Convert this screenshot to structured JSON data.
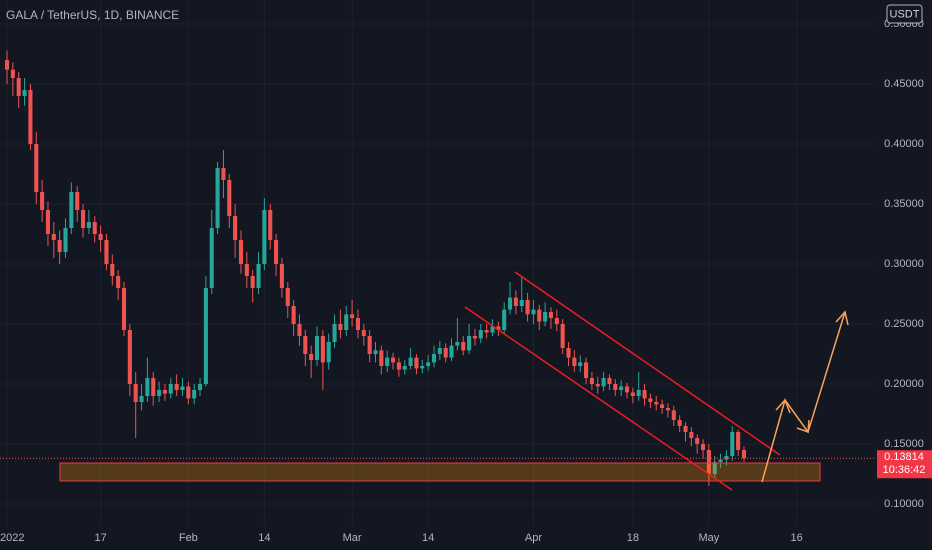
{
  "chart_data": {
    "type": "candlestick",
    "title": "GALA / TetherUS, 1D, BINANCE",
    "currency": "USDT",
    "last_price": 0.13814,
    "countdown": "10:36:42",
    "up_color": "#26a69a",
    "down_color": "#ef5350",
    "grid": true,
    "xlim": [
      -1.2,
      148.4
    ],
    "xticks": [
      {
        "value": 0,
        "label": "2022"
      },
      {
        "value": 16,
        "label": "17"
      },
      {
        "value": 31,
        "label": "Feb"
      },
      {
        "value": 44,
        "label": "14"
      },
      {
        "value": 59,
        "label": "Mar"
      },
      {
        "value": 72,
        "label": "14"
      },
      {
        "value": 90,
        "label": "Apr"
      },
      {
        "value": 107,
        "label": "18"
      },
      {
        "value": 120,
        "label": "May"
      },
      {
        "value": 135,
        "label": "16"
      }
    ],
    "ylim": [
      0.0825,
      0.52
    ],
    "yticks": [
      {
        "value": 0.1,
        "label": "0.10000"
      },
      {
        "value": 0.15,
        "label": "0.15000"
      },
      {
        "value": 0.2,
        "label": "0.20000"
      },
      {
        "value": 0.25,
        "label": "0.25000"
      },
      {
        "value": 0.3,
        "label": "0.30000"
      },
      {
        "value": 0.35,
        "label": "0.35000"
      },
      {
        "value": 0.4,
        "label": "0.40000"
      },
      {
        "value": 0.45,
        "label": "0.45000"
      },
      {
        "value": 0.5,
        "label": "0.50000"
      }
    ],
    "x": [
      0,
      1,
      2,
      3,
      4,
      5,
      6,
      7,
      8,
      9,
      10,
      11,
      12,
      13,
      14,
      15,
      16,
      17,
      18,
      19,
      20,
      21,
      22,
      23,
      24,
      25,
      26,
      27,
      28,
      29,
      30,
      31,
      32,
      33,
      34,
      35,
      36,
      37,
      38,
      39,
      40,
      41,
      42,
      43,
      44,
      45,
      46,
      47,
      48,
      49,
      50,
      51,
      52,
      53,
      54,
      55,
      56,
      57,
      58,
      59,
      60,
      61,
      62,
      63,
      64,
      65,
      66,
      67,
      68,
      69,
      70,
      71,
      72,
      73,
      74,
      75,
      76,
      77,
      78,
      79,
      80,
      81,
      82,
      83,
      84,
      85,
      86,
      87,
      88,
      89,
      90,
      91,
      92,
      93,
      94,
      95,
      96,
      97,
      98,
      99,
      100,
      101,
      102,
      103,
      104,
      105,
      106,
      107,
      108,
      109,
      110,
      111,
      112,
      113,
      114,
      115,
      116,
      117,
      118,
      119,
      120,
      121,
      122,
      123,
      124,
      125,
      126
    ],
    "open": [
      0.47,
      0.462,
      0.455,
      0.44,
      0.445,
      0.4,
      0.36,
      0.345,
      0.325,
      0.32,
      0.31,
      0.33,
      0.36,
      0.345,
      0.33,
      0.335,
      0.325,
      0.32,
      0.3,
      0.29,
      0.28,
      0.245,
      0.2,
      0.185,
      0.19,
      0.205,
      0.19,
      0.195,
      0.192,
      0.2,
      0.195,
      0.198,
      0.188,
      0.195,
      0.2,
      0.28,
      0.33,
      0.38,
      0.37,
      0.34,
      0.32,
      0.3,
      0.29,
      0.28,
      0.3,
      0.345,
      0.32,
      0.3,
      0.28,
      0.265,
      0.25,
      0.24,
      0.225,
      0.22,
      0.24,
      0.218,
      0.235,
      0.25,
      0.245,
      0.258,
      0.255,
      0.245,
      0.24,
      0.225,
      0.228,
      0.215,
      0.222,
      0.218,
      0.212,
      0.215,
      0.222,
      0.213,
      0.215,
      0.218,
      0.225,
      0.23,
      0.222,
      0.232,
      0.235,
      0.228,
      0.24,
      0.238,
      0.245,
      0.243,
      0.248,
      0.245,
      0.262,
      0.272,
      0.265,
      0.27,
      0.258,
      0.262,
      0.252,
      0.26,
      0.255,
      0.25,
      0.23,
      0.222,
      0.215,
      0.218,
      0.205,
      0.2,
      0.198,
      0.205,
      0.2,
      0.195,
      0.198,
      0.193,
      0.19,
      0.195,
      0.188,
      0.185,
      0.183,
      0.18,
      0.178,
      0.17,
      0.165,
      0.16,
      0.155,
      0.15,
      0.145,
      0.125,
      0.135,
      0.137,
      0.14,
      0.16,
      0.145
    ],
    "high": [
      0.478,
      0.468,
      0.46,
      0.455,
      0.45,
      0.41,
      0.37,
      0.352,
      0.335,
      0.328,
      0.338,
      0.368,
      0.365,
      0.35,
      0.345,
      0.34,
      0.332,
      0.325,
      0.308,
      0.295,
      0.285,
      0.25,
      0.21,
      0.2,
      0.222,
      0.21,
      0.202,
      0.2,
      0.205,
      0.208,
      0.205,
      0.202,
      0.2,
      0.205,
      0.29,
      0.345,
      0.385,
      0.395,
      0.375,
      0.35,
      0.328,
      0.31,
      0.295,
      0.31,
      0.355,
      0.35,
      0.325,
      0.305,
      0.285,
      0.27,
      0.258,
      0.245,
      0.232,
      0.248,
      0.245,
      0.242,
      0.258,
      0.262,
      0.265,
      0.27,
      0.262,
      0.25,
      0.245,
      0.235,
      0.232,
      0.228,
      0.226,
      0.222,
      0.22,
      0.23,
      0.225,
      0.22,
      0.224,
      0.232,
      0.236,
      0.234,
      0.238,
      0.255,
      0.24,
      0.25,
      0.246,
      0.25,
      0.25,
      0.254,
      0.252,
      0.268,
      0.285,
      0.278,
      0.29,
      0.276,
      0.27,
      0.266,
      0.268,
      0.264,
      0.262,
      0.254,
      0.235,
      0.228,
      0.224,
      0.222,
      0.21,
      0.206,
      0.21,
      0.208,
      0.204,
      0.203,
      0.201,
      0.197,
      0.21,
      0.2,
      0.192,
      0.19,
      0.187,
      0.184,
      0.182,
      0.174,
      0.168,
      0.164,
      0.158,
      0.154,
      0.15,
      0.14,
      0.142,
      0.145,
      0.165,
      0.162,
      0.148
    ],
    "low": [
      0.45,
      0.44,
      0.43,
      0.432,
      0.395,
      0.35,
      0.335,
      0.315,
      0.305,
      0.3,
      0.305,
      0.325,
      0.335,
      0.322,
      0.325,
      0.318,
      0.31,
      0.295,
      0.282,
      0.27,
      0.24,
      0.19,
      0.155,
      0.178,
      0.185,
      0.182,
      0.185,
      0.186,
      0.188,
      0.19,
      0.19,
      0.183,
      0.183,
      0.19,
      0.198,
      0.275,
      0.325,
      0.355,
      0.33,
      0.305,
      0.292,
      0.28,
      0.268,
      0.275,
      0.295,
      0.312,
      0.29,
      0.272,
      0.255,
      0.24,
      0.232,
      0.215,
      0.205,
      0.215,
      0.195,
      0.212,
      0.23,
      0.238,
      0.24,
      0.248,
      0.238,
      0.232,
      0.218,
      0.218,
      0.208,
      0.21,
      0.212,
      0.206,
      0.208,
      0.212,
      0.208,
      0.209,
      0.211,
      0.214,
      0.22,
      0.218,
      0.219,
      0.228,
      0.224,
      0.225,
      0.232,
      0.234,
      0.238,
      0.24,
      0.24,
      0.242,
      0.258,
      0.258,
      0.26,
      0.252,
      0.25,
      0.245,
      0.248,
      0.246,
      0.244,
      0.225,
      0.215,
      0.21,
      0.21,
      0.2,
      0.195,
      0.192,
      0.194,
      0.195,
      0.19,
      0.19,
      0.188,
      0.184,
      0.186,
      0.182,
      0.18,
      0.178,
      0.175,
      0.172,
      0.165,
      0.16,
      0.152,
      0.148,
      0.142,
      0.138,
      0.115,
      0.122,
      0.13,
      0.132,
      0.136,
      0.14,
      0.135
    ],
    "close": [
      0.462,
      0.455,
      0.44,
      0.445,
      0.4,
      0.36,
      0.345,
      0.325,
      0.32,
      0.31,
      0.33,
      0.36,
      0.345,
      0.33,
      0.335,
      0.325,
      0.32,
      0.3,
      0.29,
      0.28,
      0.245,
      0.2,
      0.185,
      0.19,
      0.205,
      0.19,
      0.195,
      0.192,
      0.2,
      0.195,
      0.198,
      0.188,
      0.195,
      0.2,
      0.28,
      0.33,
      0.38,
      0.37,
      0.34,
      0.32,
      0.3,
      0.29,
      0.28,
      0.3,
      0.345,
      0.32,
      0.3,
      0.28,
      0.265,
      0.25,
      0.24,
      0.225,
      0.22,
      0.24,
      0.218,
      0.235,
      0.25,
      0.245,
      0.258,
      0.255,
      0.245,
      0.24,
      0.225,
      0.228,
      0.215,
      0.222,
      0.218,
      0.212,
      0.215,
      0.222,
      0.213,
      0.215,
      0.218,
      0.225,
      0.23,
      0.222,
      0.232,
      0.235,
      0.228,
      0.24,
      0.238,
      0.245,
      0.243,
      0.248,
      0.245,
      0.262,
      0.272,
      0.265,
      0.27,
      0.258,
      0.262,
      0.252,
      0.26,
      0.255,
      0.25,
      0.23,
      0.222,
      0.215,
      0.218,
      0.205,
      0.2,
      0.198,
      0.205,
      0.2,
      0.195,
      0.198,
      0.193,
      0.19,
      0.195,
      0.188,
      0.185,
      0.183,
      0.18,
      0.178,
      0.17,
      0.165,
      0.16,
      0.155,
      0.15,
      0.145,
      0.125,
      0.135,
      0.137,
      0.14,
      0.16,
      0.145,
      0.13814
    ]
  }
}
